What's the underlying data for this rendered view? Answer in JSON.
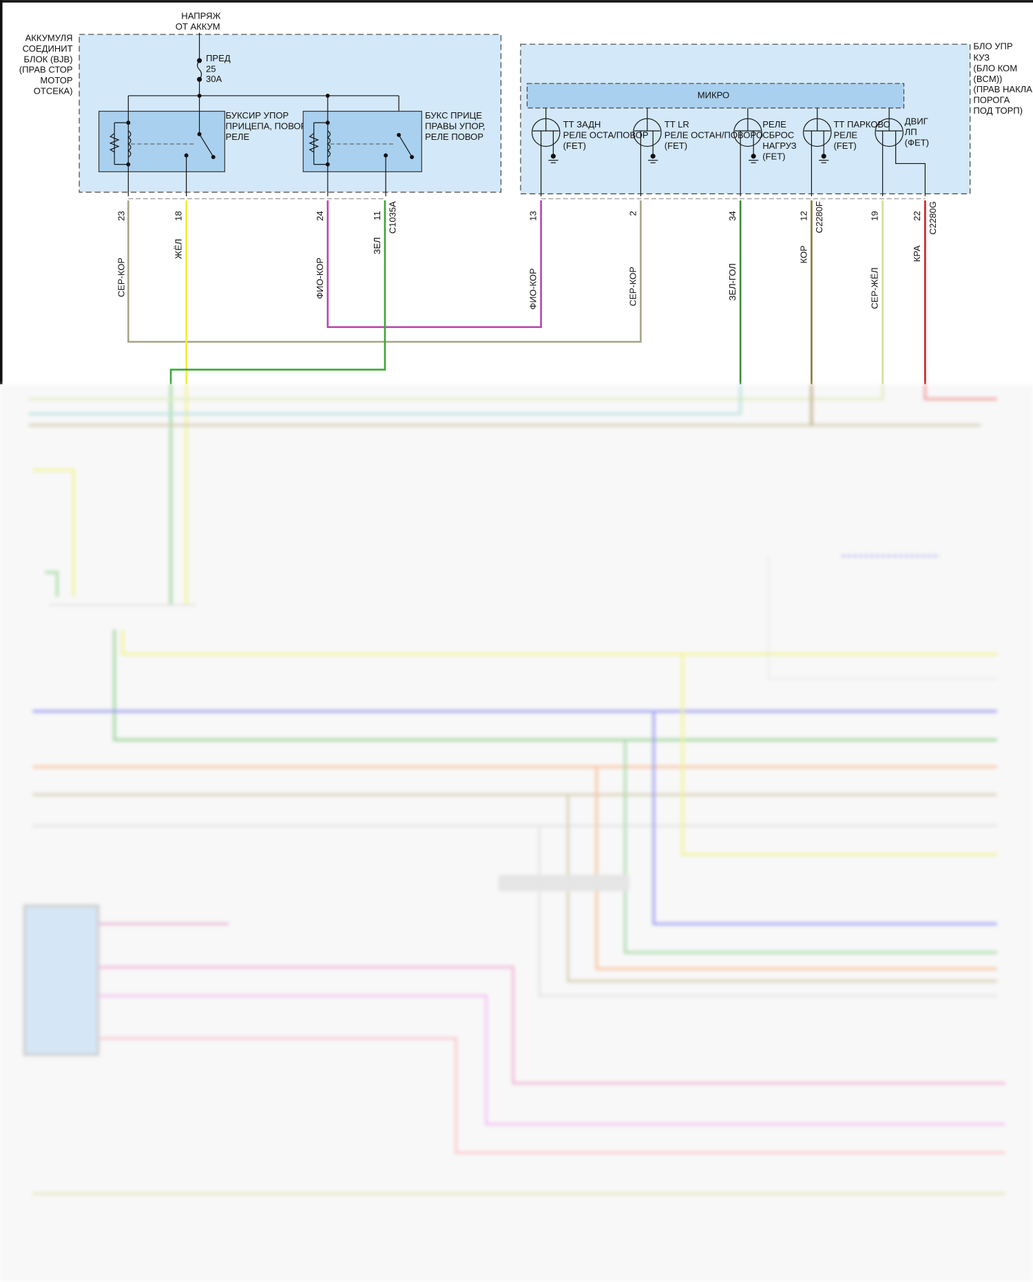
{
  "battery_feed": {
    "line1": "НАПРЯЖ",
    "line2": "ОТ АККУМ"
  },
  "bjb": {
    "label": [
      "АККУМУЛЯ",
      "СОЕДИНИТ",
      "БЛОК (BJB)",
      "(ПРАВ СТОР",
      "МОТОР",
      "ОТСЕКА)"
    ],
    "fuse": [
      "ПРЕД",
      "25",
      "30A"
    ],
    "relay1": [
      "БУКСИР УПОР",
      "ПРИЦЕПА, ПОВОРОТ",
      "РЕЛЕ"
    ],
    "relay2": [
      "БУКС ПРИЦЕ",
      "ПРАВЫ УПОР,",
      "РЕЛЕ ПОВОР"
    ],
    "pins": [
      {
        "pin": "23",
        "wire": "СЕР-КОР",
        "color": "#a8a58a"
      },
      {
        "pin": "18",
        "wire": "ЖЁЛ",
        "color": "#f0f030"
      },
      {
        "pin": "24",
        "wire": "ФИО-КОР",
        "color": "#c040b0"
      },
      {
        "pin": "11",
        "wire": "ЗЕЛ",
        "color": "#3aa83a",
        "connector": "C1035A"
      }
    ]
  },
  "bcm": {
    "label": [
      "БЛО УПР",
      "КУЗ",
      "(БЛО КОМ",
      "(BCM))",
      "(ПРАВ НАКЛА",
      "ПОРОГА",
      "ПОД ТОРП)"
    ],
    "micro": "МИКРО",
    "fets": [
      [
        "ТТ ЗАДН",
        "РЕЛЕ ОСТА/ПОВОР",
        "(FET)"
      ],
      [
        "TT LR",
        "РЕЛЕ ОСТАН/ПОВОРО",
        "(FET)"
      ],
      [
        "РЕЛЕ",
        "СБРОС",
        "НАГРУЗ",
        "(FET)"
      ],
      [
        "ТТ ПАРКОВО",
        "РЕЛЕ",
        "(FET)"
      ],
      [
        "ДВИГ",
        "ЛП",
        "(ФЕТ)"
      ]
    ],
    "pins": [
      {
        "pin": "13",
        "wire": "ФИО-КОР",
        "color": "#c040b0"
      },
      {
        "pin": "2",
        "wire": "СЕР-КОР",
        "color": "#a8a58a"
      },
      {
        "pin": "34",
        "wire": "ЗЕЛ-ГОЛ",
        "color": "#3a8a3a"
      },
      {
        "pin": "12",
        "wire": "КОР",
        "color": "#8b7a2a",
        "connector": "C2280F"
      },
      {
        "pin": "19",
        "wire": "СЕР-ЖЁЛ",
        "color": "#d4dc9a"
      },
      {
        "pin": "22",
        "wire": "КРА",
        "color": "#d02020",
        "connector": "C2280G"
      }
    ]
  },
  "colors": {
    "module_fill": "#d3e8f8",
    "relay_fill": "#a9d0ee"
  }
}
